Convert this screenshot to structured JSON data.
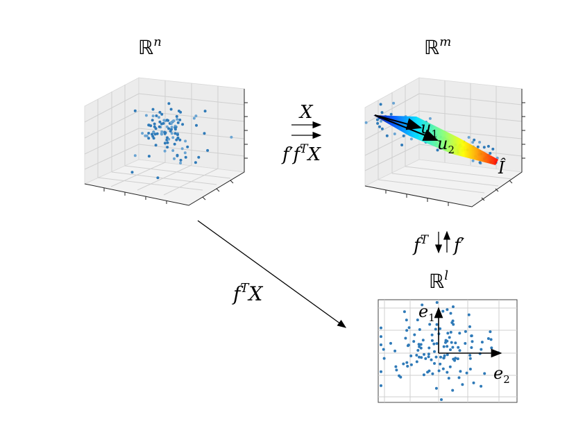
{
  "spaces": {
    "rn": {
      "symbol": "ℝ",
      "exp": "n"
    },
    "rm": {
      "symbol": "ℝ",
      "exp": "m"
    },
    "rl": {
      "symbol": "ℝ",
      "exp": "l"
    }
  },
  "arrows": {
    "top_upper_base": "X",
    "top_lower_f": "f",
    "top_lower_prime": "′",
    "top_lower_f2": "f",
    "top_lower_T": "T",
    "top_lower_X": "X",
    "diag_f": "f",
    "diag_T": "T",
    "diag_X": "X",
    "vert_left_f": "f",
    "vert_left_T": "T",
    "vert_right_f": "f",
    "vert_right_prime": "′"
  },
  "vectors": {
    "u1_base": "u",
    "u1_sub": "1",
    "u2_base": "u",
    "u2_sub": "2",
    "ihat": "Î",
    "e1_base": "e",
    "e1_sub": "1",
    "e2_base": "e",
    "e2_sub": "2"
  },
  "colors": {
    "points": "#2f7ab8",
    "manifold_gradient": [
      "#000080",
      "#0060ff",
      "#00e0ff",
      "#60ff80",
      "#ffff00",
      "#ff8000",
      "#ff0000"
    ]
  }
}
